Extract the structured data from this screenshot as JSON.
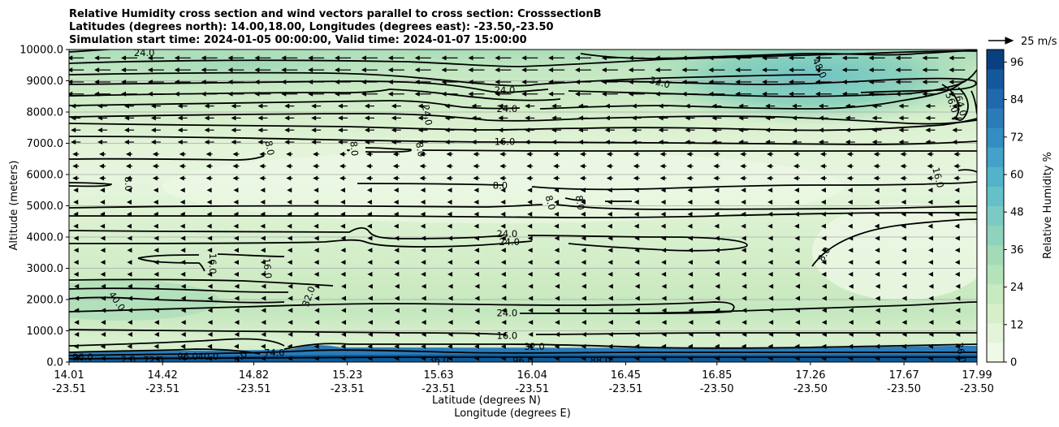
{
  "chart_data": {
    "type": "contour",
    "title_lines": [
      "Relative Humidity cross section and wind vectors parallel to cross section: CrosssectionB",
      "Latitudes (degrees north): 14.00,18.00, Longitudes (degrees east): -23.50,-23.50",
      "Simulation start time: 2024-01-05 00:00:00, Valid time: 2024-01-07 15:00:00"
    ],
    "x_label_1": "Latitude (degrees N)",
    "x_label_2": "Longitude (degrees E)",
    "y_label": "Altitude (meters)",
    "x_range": [
      14.01,
      17.99
    ],
    "y_range": [
      0,
      10000
    ],
    "x_ticks": [
      {
        "lat": "14.01",
        "lon": "-23.51",
        "v": 14.01
      },
      {
        "lat": "14.42",
        "lon": "-23.51",
        "v": 14.42
      },
      {
        "lat": "14.82",
        "lon": "-23.51",
        "v": 14.82
      },
      {
        "lat": "15.23",
        "lon": "-23.51",
        "v": 15.23
      },
      {
        "lat": "15.63",
        "lon": "-23.51",
        "v": 15.63
      },
      {
        "lat": "16.04",
        "lon": "-23.51",
        "v": 16.04
      },
      {
        "lat": "16.45",
        "lon": "-23.51",
        "v": 16.45
      },
      {
        "lat": "16.85",
        "lon": "-23.50",
        "v": 16.85
      },
      {
        "lat": "17.26",
        "lon": "-23.50",
        "v": 17.26
      },
      {
        "lat": "17.67",
        "lon": "-23.50",
        "v": 17.67
      },
      {
        "lat": "17.99",
        "lon": "-23.50",
        "v": 17.99
      }
    ],
    "y_ticks": [
      {
        "label": "0.0",
        "v": 0
      },
      {
        "label": "1000.0",
        "v": 1000
      },
      {
        "label": "2000.0",
        "v": 2000
      },
      {
        "label": "3000.0",
        "v": 3000
      },
      {
        "label": "4000.0",
        "v": 4000
      },
      {
        "label": "5000.0",
        "v": 5000
      },
      {
        "label": "6000.0",
        "v": 6000
      },
      {
        "label": "7000.0",
        "v": 7000
      },
      {
        "label": "8000.0",
        "v": 8000
      },
      {
        "label": "9000.0",
        "v": 9000
      },
      {
        "label": "10000.0",
        "v": 10000
      }
    ],
    "grid": "horizontal",
    "colorbar": {
      "label": "Relative Humidity %",
      "range": [
        0,
        100
      ],
      "ticks": [
        0,
        12,
        24,
        36,
        48,
        60,
        72,
        84,
        96
      ],
      "colors": [
        "#f0f9e8",
        "#e4f4d8",
        "#d6efc9",
        "#c7eac1",
        "#b4e2b9",
        "#a2dbb5",
        "#8fd3bc",
        "#7bcbc4",
        "#66c0c8",
        "#52b3c9",
        "#43a2ca",
        "#348ec2",
        "#2b7bb8",
        "#1f69ac",
        "#14589c",
        "#084081"
      ]
    },
    "wind_reference": {
      "label": "25 m/s",
      "value": 25
    },
    "contour_labels": [
      {
        "text": "24.0",
        "x": 14.34,
        "y": 9900,
        "rot": 0
      },
      {
        "text": "48.0",
        "x": 17.3,
        "y": 9400,
        "rot": 65
      },
      {
        "text": "32.0",
        "x": 16.6,
        "y": 8950,
        "rot": 15
      },
      {
        "text": "24.0",
        "x": 15.92,
        "y": 8700,
        "rot": 0
      },
      {
        "text": "24.0",
        "x": 15.93,
        "y": 8100,
        "rot": 0
      },
      {
        "text": "24.0",
        "x": 15.58,
        "y": 7900,
        "rot": 80
      },
      {
        "text": "16.0",
        "x": 15.92,
        "y": 7050,
        "rot": 0
      },
      {
        "text": "8.0",
        "x": 14.89,
        "y": 6850,
        "rot": 80
      },
      {
        "text": "8.0",
        "x": 15.26,
        "y": 6830,
        "rot": 85
      },
      {
        "text": "8.0",
        "x": 15.55,
        "y": 6800,
        "rot": 80
      },
      {
        "text": "8.0",
        "x": 14.27,
        "y": 5700,
        "rot": 88
      },
      {
        "text": "8.0",
        "x": 15.9,
        "y": 5650,
        "rot": 0
      },
      {
        "text": "8.0",
        "x": 16.12,
        "y": 5100,
        "rot": 75
      },
      {
        "text": "8.0",
        "x": 16.25,
        "y": 5100,
        "rot": 80
      },
      {
        "text": "16.0",
        "x": 17.82,
        "y": 5900,
        "rot": 75
      },
      {
        "text": "56.0",
        "x": 17.88,
        "y": 8300,
        "rot": 70
      },
      {
        "text": "64.0",
        "x": 17.92,
        "y": 8200,
        "rot": 75
      },
      {
        "text": "24.0",
        "x": 15.93,
        "y": 4100,
        "rot": 0
      },
      {
        "text": "24.0",
        "x": 15.94,
        "y": 3850,
        "rot": 0
      },
      {
        "text": "16.0",
        "x": 14.64,
        "y": 3150,
        "rot": 90
      },
      {
        "text": "16.0",
        "x": 14.88,
        "y": 3000,
        "rot": 85
      },
      {
        "text": "8.0",
        "x": 17.32,
        "y": 3450,
        "rot": -60
      },
      {
        "text": "32.0",
        "x": 15.06,
        "y": 2100,
        "rot": -70
      },
      {
        "text": "40.0",
        "x": 14.22,
        "y": 1950,
        "rot": 55
      },
      {
        "text": "24.0",
        "x": 15.93,
        "y": 1570,
        "rot": 0
      },
      {
        "text": "16.0",
        "x": 15.93,
        "y": 850,
        "rot": 0
      },
      {
        "text": "96.0",
        "x": 14.07,
        "y": 150,
        "rot": 0
      },
      {
        "text": "2.0",
        "x": 14.27,
        "y": 80,
        "rot": 0
      },
      {
        "text": "72.0",
        "x": 14.38,
        "y": 60,
        "rot": 0
      },
      {
        "text": "96.0",
        "x": 14.53,
        "y": 180,
        "rot": 0
      },
      {
        "text": "40.0",
        "x": 14.62,
        "y": 180,
        "rot": 0
      },
      {
        "text": "4.0",
        "x": 14.76,
        "y": 150,
        "rot": -40
      },
      {
        "text": "74.0",
        "x": 14.91,
        "y": 300,
        "rot": 0
      },
      {
        "text": "36.0",
        "x": 15.63,
        "y": 70,
        "rot": 0
      },
      {
        "text": "32.0",
        "x": 16.05,
        "y": 500,
        "rot": 0
      },
      {
        "text": "96.0",
        "x": 16.0,
        "y": 40,
        "rot": 0
      },
      {
        "text": "88.0",
        "x": 16.34,
        "y": 50,
        "rot": 0
      },
      {
        "text": "36.0",
        "x": 17.92,
        "y": 300,
        "rot": 80
      }
    ]
  }
}
